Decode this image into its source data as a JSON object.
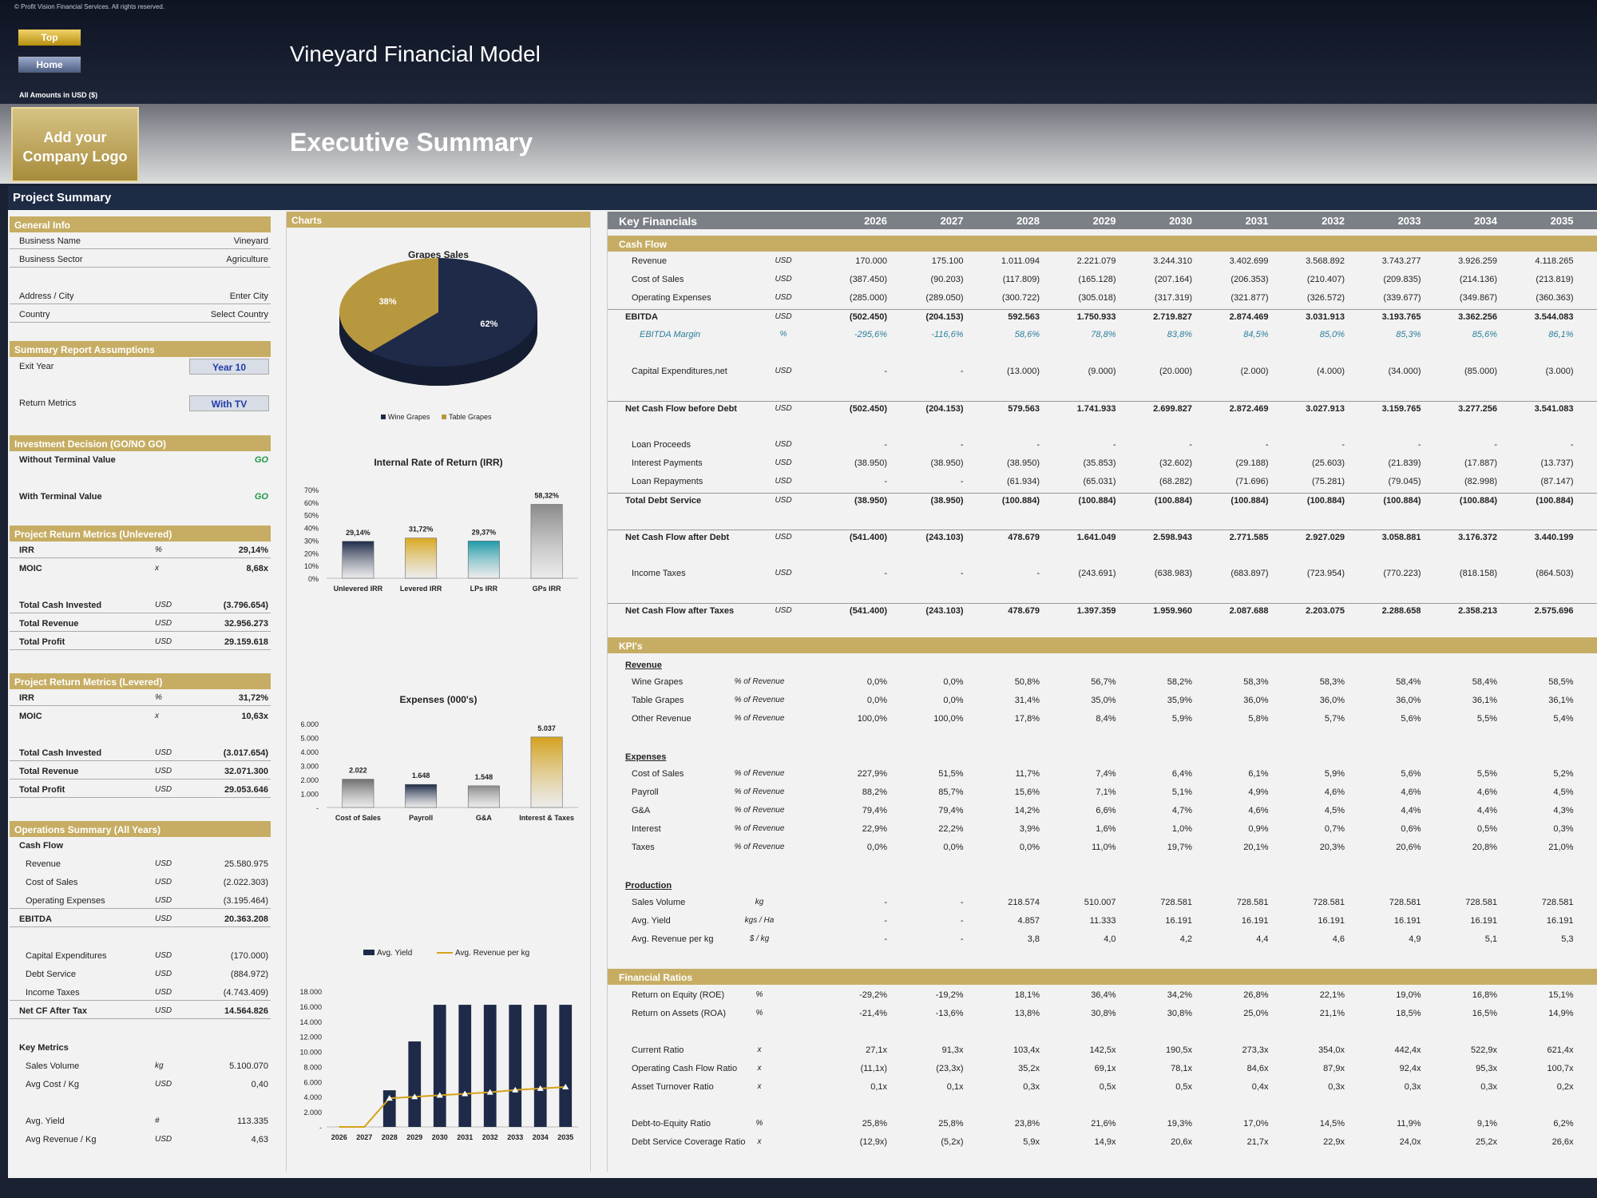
{
  "header": {
    "copyright": "© Profit Vision Financial Services. All rights reserved.",
    "top_btn": "Top",
    "home_btn": "Home",
    "amounts": "All Amounts in  USD ($)",
    "model_title": "Vineyard Financial Model",
    "logo_text": "Add your Company Logo",
    "exec_title": "Executive Summary",
    "project_summary": "Project Summary"
  },
  "left": {
    "general": {
      "title": "General Info",
      "rows": [
        [
          "Business Name",
          "Vineyard"
        ],
        [
          "Business Sector",
          "Agriculture"
        ],
        [
          "Address / City",
          "Enter City"
        ],
        [
          "Country",
          "Select Country"
        ]
      ]
    },
    "assumptions": {
      "title": "Summary  Report Assumptions",
      "exit_label": "Exit Year",
      "exit_value": "Year 10",
      "return_label": "Return Metrics",
      "return_value": "With TV"
    },
    "decision": {
      "title": "Investment Decision (GO/NO GO)",
      "without_label": "Without Terminal Value",
      "without_value": "GO",
      "with_label": "With Terminal Value",
      "with_value": "GO"
    },
    "unlevered": {
      "title": "Project Return Metrics (Unlevered)",
      "irr": [
        "IRR",
        "%",
        "29,14%"
      ],
      "moic": [
        "MOIC",
        "x",
        "8,68x"
      ],
      "rows": [
        [
          "Total Cash Invested",
          "USD",
          "(3.796.654)"
        ],
        [
          "Total Revenue",
          "USD",
          "32.956.273"
        ],
        [
          "Total Profit",
          "USD",
          "29.159.618"
        ]
      ]
    },
    "levered": {
      "title": "Project Return Metrics (Levered)",
      "irr": [
        "IRR",
        "%",
        "31,72%"
      ],
      "moic": [
        "MOIC",
        "x",
        "10,63x"
      ],
      "rows": [
        [
          "Total Cash Invested",
          "USD",
          "(3.017.654)"
        ],
        [
          "Total Revenue",
          "USD",
          "32.071.300"
        ],
        [
          "Total Profit",
          "USD",
          "29.053.646"
        ]
      ]
    },
    "ops": {
      "title": "Operations Summary (All Years)",
      "cash_flow": "Cash Flow",
      "rows1": [
        [
          "Revenue",
          "USD",
          "25.580.975"
        ],
        [
          "Cost of Sales",
          "USD",
          "(2.022.303)"
        ],
        [
          "Operating Expenses",
          "USD",
          "(3.195.464)"
        ]
      ],
      "ebitda": [
        "EBITDA",
        "USD",
        "20.363.208"
      ],
      "rows2": [
        [
          "Capital Expenditures",
          "USD",
          "(170.000)"
        ],
        [
          "Debt Service",
          "USD",
          "(884.972)"
        ],
        [
          "Income Taxes",
          "USD",
          "(4.743.409)"
        ]
      ],
      "netcf": [
        "Net CF After Tax",
        "USD",
        "14.564.826"
      ],
      "key_metrics": "Key Metrics",
      "km1": [
        [
          "Sales Volume",
          "kg",
          "5.100.070"
        ],
        [
          "Avg Cost / Kg",
          "USD",
          "0,40"
        ]
      ],
      "km2": [
        [
          "Avg. Yield",
          "#",
          "113.335"
        ],
        [
          "Avg Revenue / Kg",
          "USD",
          "4,63"
        ]
      ]
    }
  },
  "charts_title": "Charts",
  "chart_data": [
    {
      "type": "pie",
      "title": "Grapes Sales",
      "categories": [
        "Wine Grapes",
        "Table Grapes"
      ],
      "values": [
        62,
        38
      ],
      "labels": [
        "62%",
        "38%"
      ],
      "colors": [
        "#1e2a48",
        "#b8983f"
      ],
      "legend": "bottom"
    },
    {
      "type": "bar",
      "title": "Internal Rate of Return (IRR)",
      "categories": [
        "Unlevered IRR",
        "Levered IRR",
        "LPs IRR",
        "GPs IRR"
      ],
      "values": [
        29.14,
        31.72,
        29.37,
        58.32
      ],
      "labels": [
        "29,14%",
        "31,72%",
        "29,37%",
        "58,32%"
      ],
      "ylim": [
        0,
        70
      ],
      "yticks": [
        "0%",
        "10%",
        "20%",
        "30%",
        "40%",
        "50%",
        "60%",
        "70%"
      ],
      "colors": [
        "#1e2a48",
        "#d9a820",
        "#1f9aa8",
        "#8a8a8a"
      ]
    },
    {
      "type": "bar",
      "title": "Expenses (000's)",
      "categories": [
        "Cost of Sales",
        "Payroll",
        "G&A",
        "Interest & Taxes"
      ],
      "values": [
        2022,
        1648,
        1548,
        5037
      ],
      "labels": [
        "2.022",
        "1.648",
        "1.548",
        "5.037"
      ],
      "ylim": [
        0,
        6000
      ],
      "yticks": [
        "-",
        "1.000",
        "2.000",
        "3.000",
        "4.000",
        "5.000",
        "6.000"
      ],
      "colors": [
        "#6e6e6e",
        "#1e2a48",
        "#8a8a8a",
        "#d4a21c"
      ]
    },
    {
      "type": "bar",
      "title": "",
      "series": [
        {
          "name": "Avg. Yield",
          "type": "bar",
          "values": [
            0,
            0,
            4857,
            11333,
            16191,
            16191,
            16191,
            16191,
            16191,
            16191
          ]
        },
        {
          "name": "Avg. Revenue per kg",
          "type": "line",
          "values": [
            0,
            0,
            3.8,
            4.0,
            4.2,
            4.4,
            4.6,
            4.9,
            5.1,
            5.3
          ]
        }
      ],
      "categories": [
        "2026",
        "2027",
        "2028",
        "2029",
        "2030",
        "2031",
        "2032",
        "2033",
        "2034",
        "2035"
      ],
      "ylim": [
        0,
        18000
      ],
      "yticks": [
        "-",
        "2.000",
        "4.000",
        "6.000",
        "8.000",
        "10.000",
        "12.000",
        "14.000",
        "16.000",
        "18.000"
      ],
      "colors": [
        "#1e2a48",
        "#d4a21c"
      ],
      "legend": "top"
    }
  ],
  "right": {
    "title": "Key Financials",
    "years": [
      "2026",
      "2027",
      "2028",
      "2029",
      "2030",
      "2031",
      "2032",
      "2033",
      "2034",
      "2035"
    ],
    "cash_flow_title": "Cash Flow",
    "kpi_title": "KPI's",
    "ratios_title": "Financial Ratios",
    "revenue_sub": "Revenue",
    "expenses_sub": "Expenses",
    "production_sub": "Production",
    "cf": [
      {
        "l": "Revenue",
        "u": "USD",
        "v": [
          "170.000",
          "175.100",
          "1.011.094",
          "2.221.079",
          "3.244.310",
          "3.402.699",
          "3.568.892",
          "3.743.277",
          "3.926.259",
          "4.118.265"
        ]
      },
      {
        "l": "Cost of Sales",
        "u": "USD",
        "v": [
          "(387.450)",
          "(90.203)",
          "(117.809)",
          "(165.128)",
          "(207.164)",
          "(206.353)",
          "(210.407)",
          "(209.835)",
          "(214.136)",
          "(213.819)"
        ]
      },
      {
        "l": "Operating Expenses",
        "u": "USD",
        "v": [
          "(285.000)",
          "(289.050)",
          "(300.722)",
          "(305.018)",
          "(317.319)",
          "(321.877)",
          "(326.572)",
          "(339.677)",
          "(349.867)",
          "(360.363)"
        ]
      },
      {
        "l": "EBITDA",
        "u": "USD",
        "b": 1,
        "v": [
          "(502.450)",
          "(204.153)",
          "592.563",
          "1.750.933",
          "2.719.827",
          "2.874.469",
          "3.031.913",
          "3.193.765",
          "3.362.256",
          "3.544.083"
        ]
      },
      {
        "l": "EBITDA Margin",
        "u": "%",
        "m": 1,
        "v": [
          "-295,6%",
          "-116,6%",
          "58,6%",
          "78,8%",
          "83,8%",
          "84,5%",
          "85,0%",
          "85,3%",
          "85,6%",
          "86,1%"
        ]
      },
      {
        "l": "Capital Expenditures,net",
        "u": "USD",
        "v": [
          "-",
          "-",
          "(13.000)",
          "(9.000)",
          "(20.000)",
          "(2.000)",
          "(4.000)",
          "(34.000)",
          "(85.000)",
          "(3.000)"
        ]
      },
      {
        "l": "Net Cash Flow before Debt",
        "u": "USD",
        "b": 1,
        "v": [
          "(502.450)",
          "(204.153)",
          "579.563",
          "1.741.933",
          "2.699.827",
          "2.872.469",
          "3.027.913",
          "3.159.765",
          "3.277.256",
          "3.541.083"
        ]
      },
      {
        "l": "Loan Proceeds",
        "u": "USD",
        "v": [
          "-",
          "-",
          "-",
          "-",
          "-",
          "-",
          "-",
          "-",
          "-",
          "-"
        ]
      },
      {
        "l": "Interest Payments",
        "u": "USD",
        "v": [
          "(38.950)",
          "(38.950)",
          "(38.950)",
          "(35.853)",
          "(32.602)",
          "(29.188)",
          "(25.603)",
          "(21.839)",
          "(17.887)",
          "(13.737)"
        ]
      },
      {
        "l": "Loan Repayments",
        "u": "USD",
        "v": [
          "-",
          "-",
          "(61.934)",
          "(65.031)",
          "(68.282)",
          "(71.696)",
          "(75.281)",
          "(79.045)",
          "(82.998)",
          "(87.147)"
        ]
      },
      {
        "l": "Total Debt Service",
        "u": "USD",
        "b": 1,
        "v": [
          "(38.950)",
          "(38.950)",
          "(100.884)",
          "(100.884)",
          "(100.884)",
          "(100.884)",
          "(100.884)",
          "(100.884)",
          "(100.884)",
          "(100.884)"
        ]
      },
      {
        "l": "Net Cash Flow after Debt",
        "u": "USD",
        "b": 1,
        "v": [
          "(541.400)",
          "(243.103)",
          "478.679",
          "1.641.049",
          "2.598.943",
          "2.771.585",
          "2.927.029",
          "3.058.881",
          "3.176.372",
          "3.440.199"
        ]
      },
      {
        "l": "Income Taxes",
        "u": "USD",
        "v": [
          "-",
          "-",
          "-",
          "(243.691)",
          "(638.983)",
          "(683.897)",
          "(723.954)",
          "(770.223)",
          "(818.158)",
          "(864.503)"
        ]
      },
      {
        "l": "Net Cash Flow after Taxes",
        "u": "USD",
        "b": 1,
        "v": [
          "(541.400)",
          "(243.103)",
          "478.679",
          "1.397.359",
          "1.959.960",
          "2.087.688",
          "2.203.075",
          "2.288.658",
          "2.358.213",
          "2.575.696"
        ]
      }
    ],
    "kpi_rev": [
      {
        "l": "Wine Grapes",
        "u": "% of Revenue",
        "v": [
          "0,0%",
          "0,0%",
          "50,8%",
          "56,7%",
          "58,2%",
          "58,3%",
          "58,3%",
          "58,4%",
          "58,4%",
          "58,5%"
        ]
      },
      {
        "l": "Table Grapes",
        "u": "% of Revenue",
        "v": [
          "0,0%",
          "0,0%",
          "31,4%",
          "35,0%",
          "35,9%",
          "36,0%",
          "36,0%",
          "36,0%",
          "36,1%",
          "36,1%"
        ]
      },
      {
        "l": "Other Revenue",
        "u": "% of Revenue",
        "v": [
          "100,0%",
          "100,0%",
          "17,8%",
          "8,4%",
          "5,9%",
          "5,8%",
          "5,7%",
          "5,6%",
          "5,5%",
          "5,4%"
        ]
      }
    ],
    "kpi_exp": [
      {
        "l": "Cost of Sales",
        "u": "% of Revenue",
        "v": [
          "227,9%",
          "51,5%",
          "11,7%",
          "7,4%",
          "6,4%",
          "6,1%",
          "5,9%",
          "5,6%",
          "5,5%",
          "5,2%"
        ]
      },
      {
        "l": "Payroll",
        "u": "% of Revenue",
        "v": [
          "88,2%",
          "85,7%",
          "15,6%",
          "7,1%",
          "5,1%",
          "4,9%",
          "4,6%",
          "4,6%",
          "4,6%",
          "4,5%"
        ]
      },
      {
        "l": "G&A",
        "u": "% of Revenue",
        "v": [
          "79,4%",
          "79,4%",
          "14,2%",
          "6,6%",
          "4,7%",
          "4,6%",
          "4,5%",
          "4,4%",
          "4,4%",
          "4,3%"
        ]
      },
      {
        "l": "Interest",
        "u": "% of Revenue",
        "v": [
          "22,9%",
          "22,2%",
          "3,9%",
          "1,6%",
          "1,0%",
          "0,9%",
          "0,7%",
          "0,6%",
          "0,5%",
          "0,3%"
        ]
      },
      {
        "l": "Taxes",
        "u": "% of Revenue",
        "v": [
          "0,0%",
          "0,0%",
          "0,0%",
          "11,0%",
          "19,7%",
          "20,1%",
          "20,3%",
          "20,6%",
          "20,8%",
          "21,0%"
        ]
      }
    ],
    "kpi_prod": [
      {
        "l": "Sales Volume",
        "u": "kg",
        "v": [
          "-",
          "-",
          "218.574",
          "510.007",
          "728.581",
          "728.581",
          "728.581",
          "728.581",
          "728.581",
          "728.581"
        ]
      },
      {
        "l": "Avg. Yield",
        "u": "kgs / Ha",
        "v": [
          "-",
          "-",
          "4.857",
          "11.333",
          "16.191",
          "16.191",
          "16.191",
          "16.191",
          "16.191",
          "16.191"
        ]
      },
      {
        "l": "Avg. Revenue per kg",
        "u": "$ / kg",
        "v": [
          "-",
          "-",
          "3,8",
          "4,0",
          "4,2",
          "4,4",
          "4,6",
          "4,9",
          "5,1",
          "5,3"
        ]
      }
    ],
    "ratios": [
      {
        "l": "Return on Equity (ROE)",
        "u": "%",
        "v": [
          "-29,2%",
          "-19,2%",
          "18,1%",
          "36,4%",
          "34,2%",
          "26,8%",
          "22,1%",
          "19,0%",
          "16,8%",
          "15,1%"
        ]
      },
      {
        "l": "Return on Assets (ROA)",
        "u": "%",
        "v": [
          "-21,4%",
          "-13,6%",
          "13,8%",
          "30,8%",
          "30,8%",
          "25,0%",
          "21,1%",
          "18,5%",
          "16,5%",
          "14,9%"
        ]
      },
      {
        "l": "Current Ratio",
        "u": "x",
        "v": [
          "27,1x",
          "91,3x",
          "103,4x",
          "142,5x",
          "190,5x",
          "273,3x",
          "354,0x",
          "442,4x",
          "522,9x",
          "621,4x"
        ]
      },
      {
        "l": "Operating Cash Flow Ratio",
        "u": "x",
        "v": [
          "(11,1x)",
          "(23,3x)",
          "35,2x",
          "69,1x",
          "78,1x",
          "84,6x",
          "87,9x",
          "92,4x",
          "95,3x",
          "100,7x"
        ]
      },
      {
        "l": "Asset Turnover Ratio",
        "u": "x",
        "v": [
          "0,1x",
          "0,1x",
          "0,3x",
          "0,5x",
          "0,5x",
          "0,4x",
          "0,3x",
          "0,3x",
          "0,3x",
          "0,2x"
        ]
      },
      {
        "l": "Debt-to-Equity Ratio",
        "u": "%",
        "v": [
          "25,8%",
          "25,8%",
          "23,8%",
          "21,6%",
          "19,3%",
          "17,0%",
          "14,5%",
          "11,9%",
          "9,1%",
          "6,2%"
        ]
      },
      {
        "l": "Debt Service Coverage Ratio",
        "u": "x",
        "v": [
          "(12,9x)",
          "(5,2x)",
          "5,9x",
          "14,9x",
          "20,6x",
          "21,7x",
          "22,9x",
          "24,0x",
          "25,2x",
          "26,6x"
        ]
      }
    ]
  }
}
